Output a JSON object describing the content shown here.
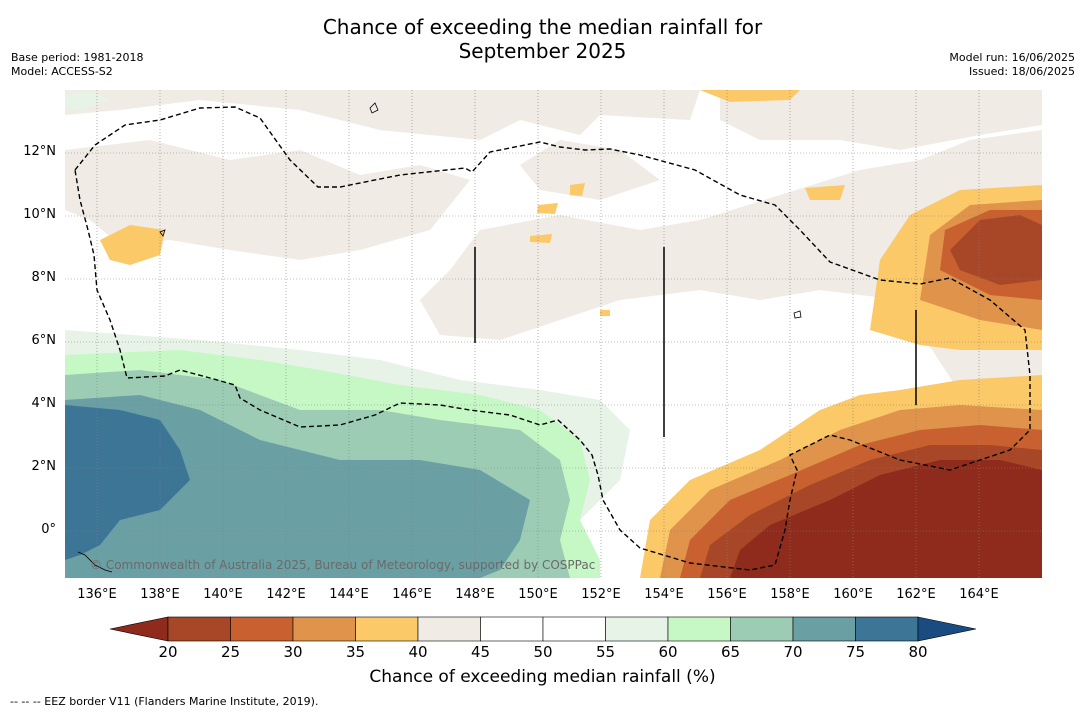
{
  "title_line1": "Chance of exceeding the median rainfall for",
  "title_line2": "September 2025",
  "left_meta": {
    "base_period": "Base period: 1981-2018",
    "model": "Model: ACCESS-S2"
  },
  "right_meta": {
    "model_run": "Model run: 16/06/2025",
    "issued": "Issued: 18/06/2025"
  },
  "x_ticks": [
    "136°E",
    "138°E",
    "140°E",
    "142°E",
    "144°E",
    "146°E",
    "148°E",
    "150°E",
    "152°E",
    "154°E",
    "156°E",
    "158°E",
    "160°E",
    "162°E",
    "164°E"
  ],
  "y_ticks": [
    "12°N",
    "10°N",
    "8°N",
    "6°N",
    "4°N",
    "2°N",
    "0°"
  ],
  "copyright": "© Commonwealth of Australia 2025, Bureau of Meteorology, supported by COSPPac",
  "colorbar": {
    "ticks": [
      "20",
      "25",
      "30",
      "35",
      "40",
      "45",
      "50",
      "55",
      "60",
      "65",
      "70",
      "75",
      "80"
    ],
    "colors": [
      "#8f2b1c",
      "#a84727",
      "#c8612f",
      "#e0934a",
      "#fcc968",
      "#f0ebe5",
      "#ffffff",
      "#ffffff",
      "#e6f3e6",
      "#c6f8c6",
      "#9ccdb4",
      "#6a9fa4",
      "#3c7596",
      "#1a4c82"
    ],
    "label": "Chance of exceeding median rainfall (%)"
  },
  "footnote": "--  --  -- EEZ border V11 (Flanders Marine Institute, 2019).",
  "map_meta": {
    "lon_range": [
      135,
      166
    ],
    "lat_range": [
      -1.5,
      14
    ],
    "colors": {
      "beige": "#f0ebe5",
      "yellow": "#fcc968",
      "orange": "#e0934a",
      "darkorange": "#c8612f",
      "brown": "#a84727",
      "darkbrown": "#8f2b1c",
      "lightgreen": "#e6f3e6",
      "green": "#c6f8c6",
      "teal": "#9ccdb4",
      "darkteal": "#6a9fa4",
      "blue": "#3c7596"
    }
  }
}
